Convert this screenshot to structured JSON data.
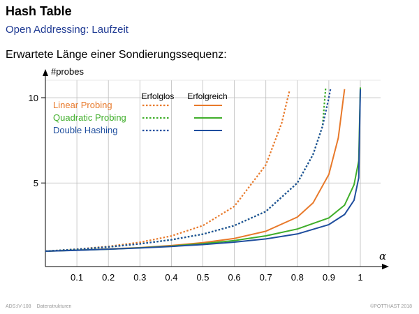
{
  "header": {
    "title": "Hash Table",
    "subtitle": "Open Addressing: Laufzeit",
    "heading": "Erwartete Länge einer Sondierungssequenz:"
  },
  "footer": {
    "left_code": "ADS:IV-108",
    "left_topic": "Datenstrukturen",
    "right": "©POTTHAST 2018"
  },
  "chart_data": {
    "type": "line",
    "ylabel": "#probes",
    "xlabel": "α",
    "xlim": [
      0,
      1.05
    ],
    "ylim": [
      0,
      11
    ],
    "xticks": [
      0.1,
      0.2,
      0.3,
      0.4,
      0.5,
      0.6,
      0.7,
      0.8,
      0.9,
      1
    ],
    "xtick_labels": [
      "0.1",
      "0.2",
      "0.3",
      "0.4",
      "0.5",
      "0.6",
      "0.7",
      "0.8",
      "0.9",
      "1"
    ],
    "yticks": [
      5,
      10
    ],
    "ytick_labels": [
      "5",
      "10"
    ],
    "grid": true,
    "legend": {
      "placement": "top-left",
      "col_unsuccessful": "Erfolglos",
      "col_successful": "Erfolgreich"
    },
    "series": [
      {
        "name": "Linear Probing",
        "color": "#e8792a",
        "unsuccessful": "linear_unsuccessful",
        "successful": "linear_successful"
      },
      {
        "name": "Quadratic Probing",
        "color": "#3fae2a",
        "unsuccessful": "quadratic_unsuccessful",
        "successful": "quadratic_successful"
      },
      {
        "name": "Double Hashing",
        "color": "#1f4e9e",
        "unsuccessful": "double_unsuccessful",
        "successful": "double_successful"
      }
    ],
    "curves": {
      "linear_unsuccessful": {
        "style": "dotted",
        "x": [
          0,
          0.1,
          0.2,
          0.3,
          0.4,
          0.5,
          0.6,
          0.7,
          0.75,
          0.775
        ],
        "y": [
          1,
          1.12,
          1.28,
          1.52,
          1.89,
          2.5,
          3.63,
          6.06,
          8.5,
          10.4
        ]
      },
      "quadratic_unsuccessful": {
        "style": "dotted",
        "x": [
          0,
          0.1,
          0.2,
          0.3,
          0.4,
          0.5,
          0.6,
          0.7,
          0.8,
          0.85,
          0.88,
          0.89
        ],
        "y": [
          1,
          1.11,
          1.25,
          1.43,
          1.67,
          2.0,
          2.5,
          3.33,
          5.0,
          6.67,
          8.33,
          10.6
        ]
      },
      "double_unsuccessful": {
        "style": "dotted",
        "x": [
          0,
          0.1,
          0.2,
          0.3,
          0.4,
          0.5,
          0.6,
          0.7,
          0.8,
          0.85,
          0.88,
          0.9,
          0.905
        ],
        "y": [
          1,
          1.11,
          1.25,
          1.43,
          1.67,
          2.0,
          2.5,
          3.33,
          5.0,
          6.67,
          8.33,
          10.0,
          10.5
        ]
      },
      "linear_successful": {
        "style": "solid",
        "x": [
          0,
          0.1,
          0.2,
          0.3,
          0.4,
          0.5,
          0.6,
          0.7,
          0.8,
          0.85,
          0.9,
          0.93,
          0.95
        ],
        "y": [
          1,
          1.06,
          1.13,
          1.21,
          1.33,
          1.5,
          1.75,
          2.17,
          3.0,
          3.83,
          5.5,
          7.64,
          10.5
        ]
      },
      "quadratic_successful": {
        "style": "solid",
        "x": [
          0,
          0.1,
          0.2,
          0.3,
          0.4,
          0.5,
          0.6,
          0.7,
          0.8,
          0.9,
          0.95,
          0.98,
          0.995,
          1.0
        ],
        "y": [
          1,
          1.06,
          1.12,
          1.2,
          1.3,
          1.44,
          1.62,
          1.9,
          2.3,
          2.95,
          3.7,
          4.9,
          6.3,
          10.6
        ]
      },
      "double_successful": {
        "style": "solid",
        "x": [
          0,
          0.1,
          0.2,
          0.3,
          0.4,
          0.5,
          0.6,
          0.7,
          0.8,
          0.9,
          0.95,
          0.98,
          0.995,
          1.0
        ],
        "y": [
          1,
          1.05,
          1.12,
          1.19,
          1.28,
          1.39,
          1.53,
          1.72,
          2.01,
          2.56,
          3.15,
          3.99,
          5.3,
          10.5
        ]
      }
    }
  }
}
